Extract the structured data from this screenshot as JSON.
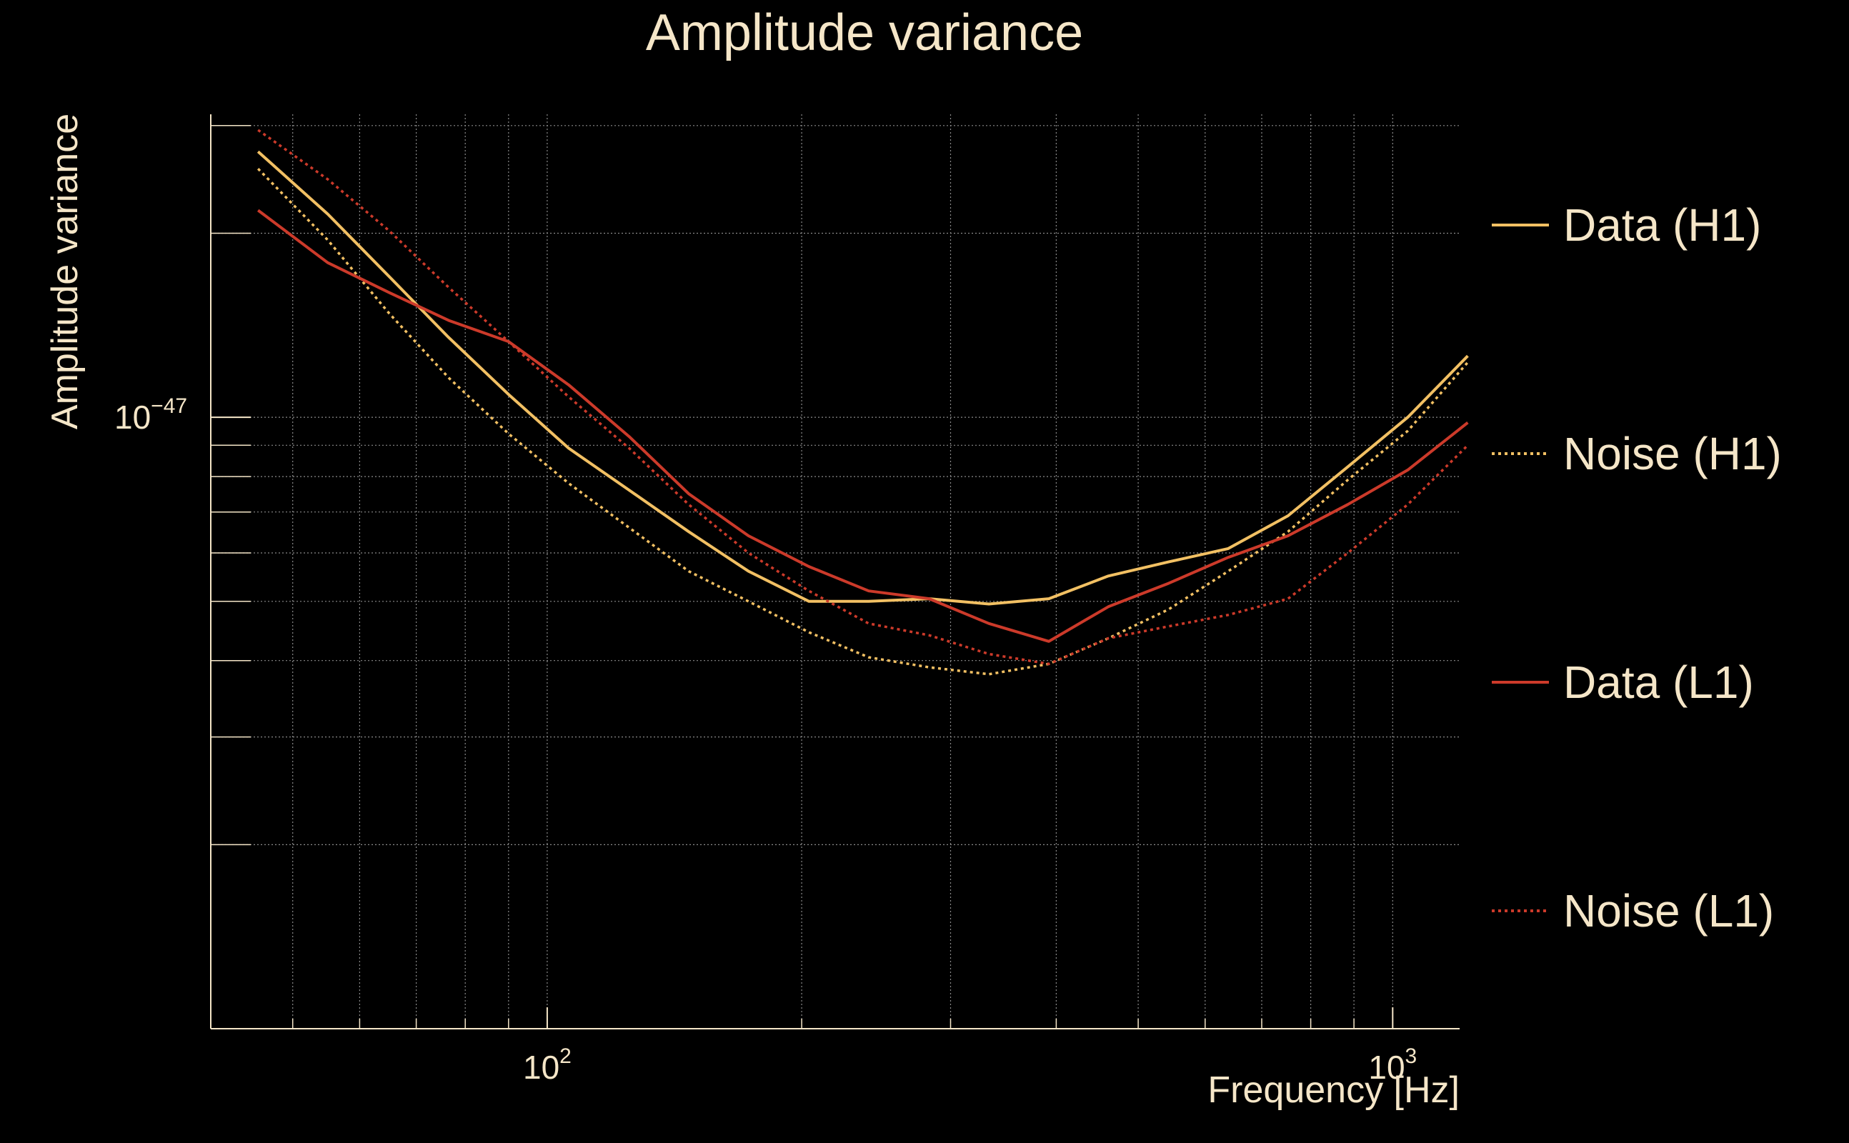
{
  "chart_data": {
    "type": "line",
    "title": "Amplitude variance",
    "xlabel": "Frequency [Hz]",
    "ylabel": "Amplitude variance",
    "xscale": "log",
    "yscale": "log",
    "xlim": [
      40,
      1200
    ],
    "ylim": [
      1e-48,
      3.13e-47
    ],
    "grid": true,
    "legend_position": "right",
    "x_ticks": [
      {
        "value": 100,
        "base": "10",
        "exp": "2"
      },
      {
        "value": 1000,
        "base": "10",
        "exp": "3"
      }
    ],
    "y_ticks": [
      {
        "value": 1e-47,
        "base": "10",
        "exp": "−47"
      }
    ],
    "x": [
      45.5,
      55,
      65,
      76.5,
      90,
      106,
      125,
      147,
      173,
      204,
      240,
      283,
      333,
      392,
      461,
      543,
      639,
      752,
      885,
      1042,
      1227
    ],
    "series": [
      {
        "name": "Data (H1)",
        "color": "#f2c063",
        "style": "solid",
        "values": [
          2.72e-47,
          2.15e-47,
          1.7e-47,
          1.35e-47,
          1.09e-47,
          8.9e-48,
          7.6e-48,
          6.5e-48,
          5.6e-48,
          5e-48,
          5e-48,
          5.05e-48,
          4.95e-48,
          5.05e-48,
          5.5e-48,
          5.8e-48,
          6.1e-48,
          6.9e-48,
          8.3e-48,
          1e-47,
          1.26e-47
        ]
      },
      {
        "name": "Noise (H1)",
        "color": "#f2c063",
        "style": "dotted",
        "values": [
          2.55e-47,
          1.95e-47,
          1.48e-47,
          1.16e-47,
          9.4e-48,
          7.8e-48,
          6.6e-48,
          5.6e-48,
          5e-48,
          4.45e-48,
          4.05e-48,
          3.9e-48,
          3.8e-48,
          3.95e-48,
          4.35e-48,
          4.85e-48,
          5.6e-48,
          6.5e-48,
          7.9e-48,
          9.5e-48,
          1.23e-47
        ]
      },
      {
        "name": "Data (L1)",
        "color": "#cc3a2a",
        "style": "solid",
        "values": [
          2.18e-47,
          1.79e-47,
          1.6e-47,
          1.44e-47,
          1.33e-47,
          1.13e-47,
          9.3e-48,
          7.5e-48,
          6.4e-48,
          5.7e-48,
          5.2e-48,
          5.05e-48,
          4.6e-48,
          4.3e-48,
          4.9e-48,
          5.35e-48,
          5.9e-48,
          6.4e-48,
          7.2e-48,
          8.2e-48,
          9.8e-48
        ]
      },
      {
        "name": "Noise (L1)",
        "color": "#cc3a2a",
        "style": "dotted",
        "values": [
          2.95e-47,
          2.45e-47,
          2.02e-47,
          1.63e-47,
          1.33e-47,
          1.08e-47,
          8.9e-48,
          7.2e-48,
          6e-48,
          5.2e-48,
          4.6e-48,
          4.4e-48,
          4.1e-48,
          3.95e-48,
          4.35e-48,
          4.55e-48,
          4.75e-48,
          5.05e-48,
          6e-48,
          7.2e-48,
          9e-48
        ]
      }
    ]
  }
}
